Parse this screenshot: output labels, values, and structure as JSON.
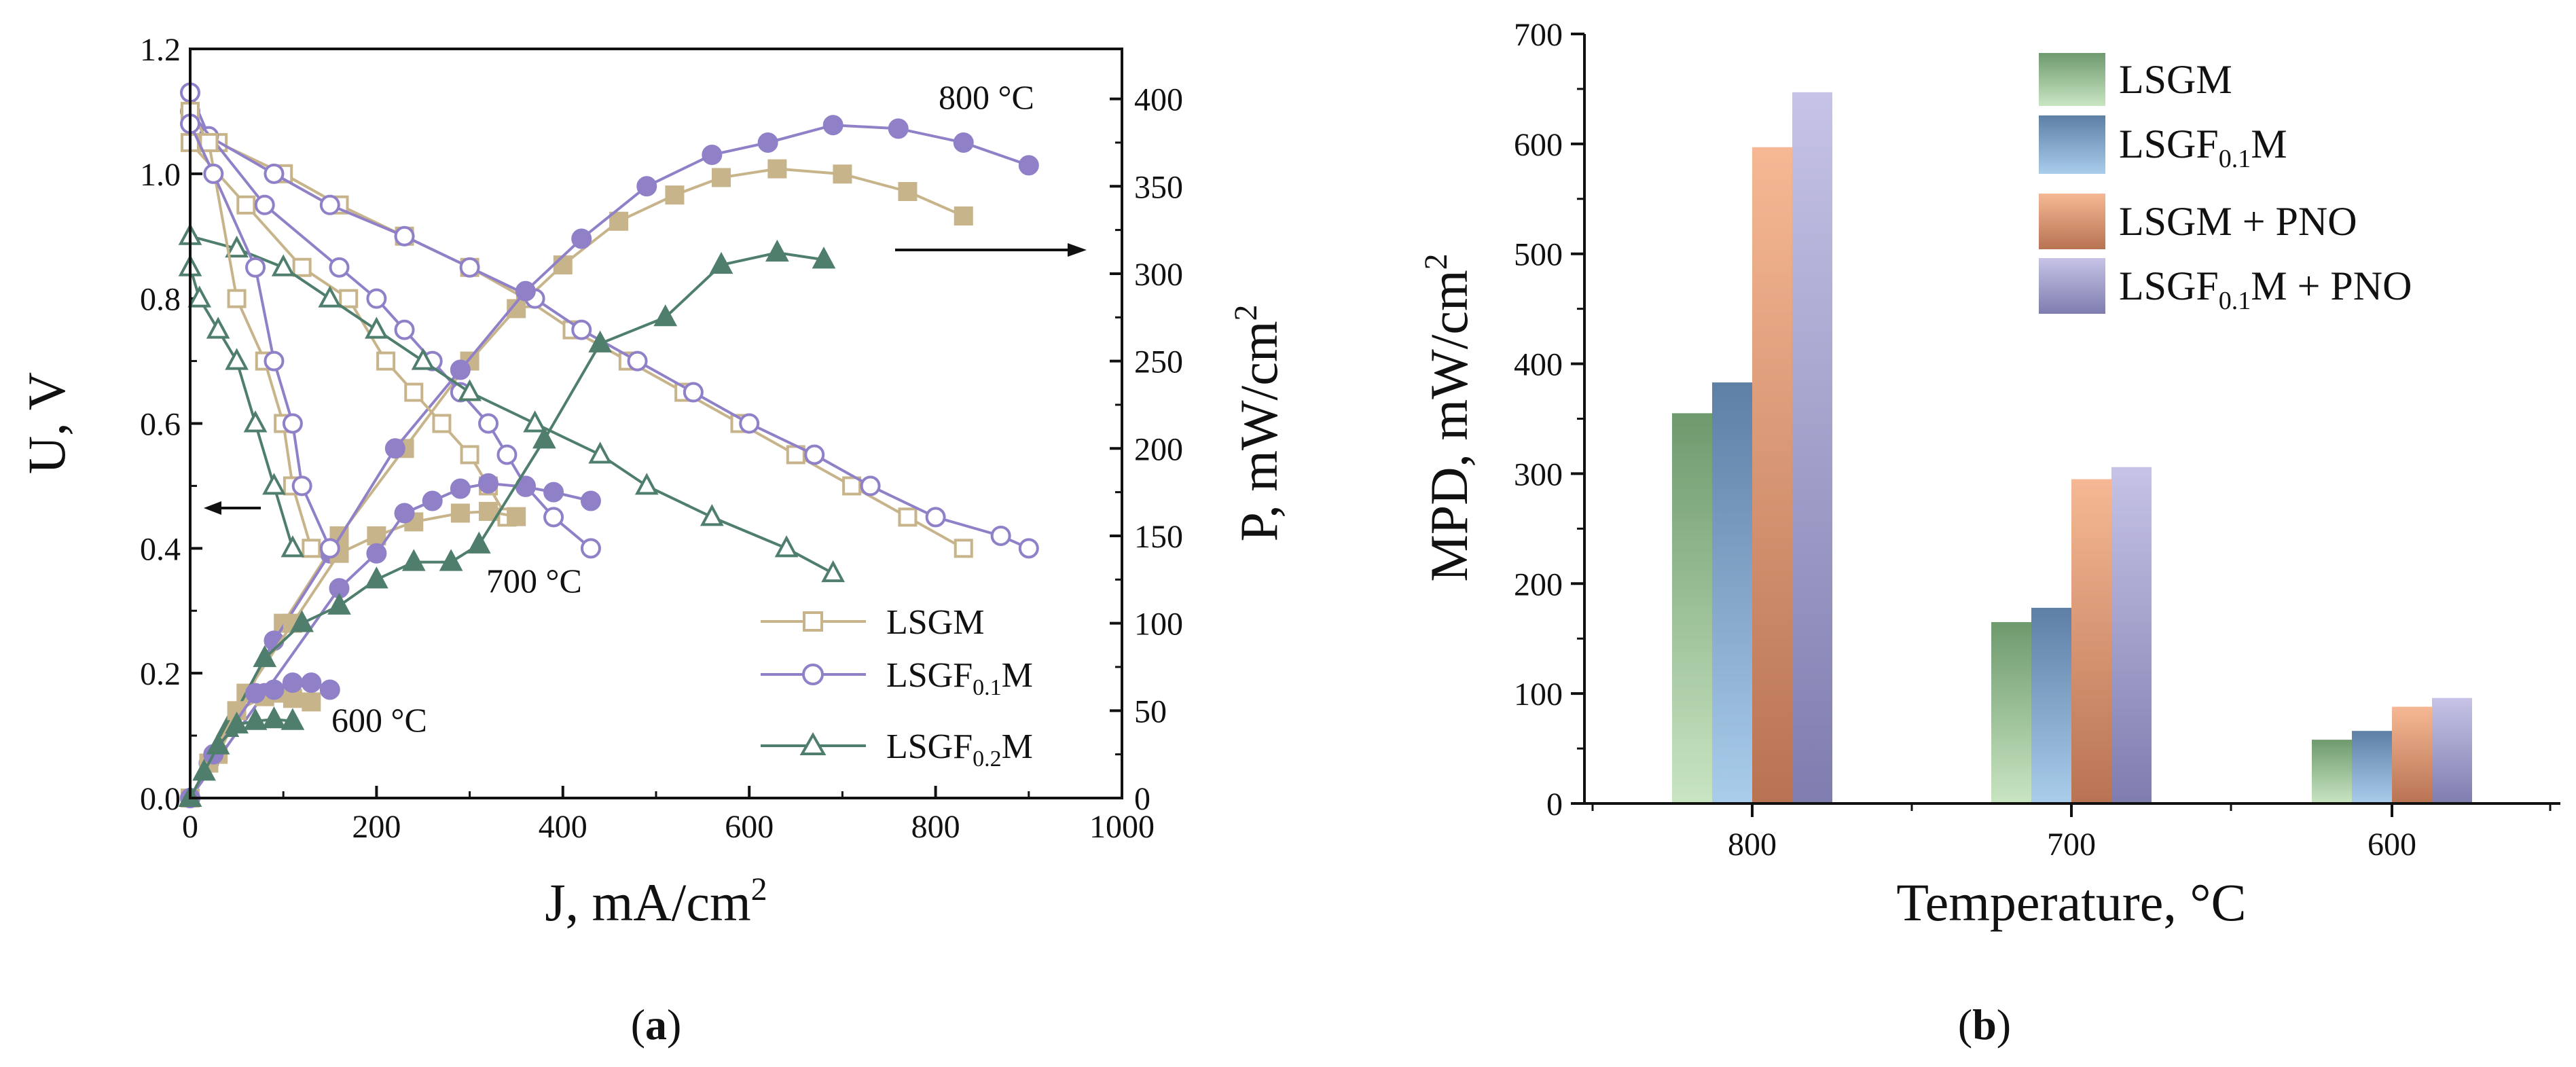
{
  "chart_data": [
    {
      "type": "line",
      "panel_label": "a",
      "x": {
        "label": "J, mA/cm",
        "label_sup": "2",
        "lim": [
          0,
          1000
        ],
        "ticks": [
          0,
          200,
          400,
          600,
          800,
          1000
        ]
      },
      "y_left": {
        "label": "U, V",
        "lim": [
          0,
          1.2
        ],
        "ticks": [
          "0.0",
          "0.2",
          "0.4",
          "0.6",
          "0.8",
          "1.0",
          "1.2"
        ]
      },
      "y_right": {
        "label": "P, mW/cm",
        "label_sup": "2",
        "lim": [
          0,
          428.6
        ],
        "ticks": [
          0,
          50,
          100,
          150,
          200,
          250,
          300,
          350,
          400
        ]
      },
      "legend": [
        {
          "name": "LSGM",
          "sub": "",
          "suffix": "",
          "marker": "square",
          "color": "#C8B48A"
        },
        {
          "name": "LSGF",
          "sub": "0.1",
          "suffix": "M",
          "marker": "circle",
          "color": "#8F80C8"
        },
        {
          "name": "LSGF",
          "sub": "0.2",
          "suffix": "M",
          "marker": "triangle",
          "color": "#4F7E6C"
        }
      ],
      "annotations": [
        "800 °C",
        "700 °C",
        "600 °C"
      ],
      "series": [
        {
          "material": "LSGM",
          "temp": "800 °C",
          "kind": "U",
          "x": [
            0,
            30,
            100,
            160,
            230,
            300,
            360,
            410,
            470,
            530,
            590,
            650,
            710,
            770,
            830
          ],
          "y": [
            1.09,
            1.05,
            1.0,
            0.95,
            0.9,
            0.85,
            0.8,
            0.75,
            0.7,
            0.65,
            0.6,
            0.55,
            0.5,
            0.45,
            0.4
          ]
        },
        {
          "material": "LSGM",
          "temp": "800 °C",
          "kind": "P",
          "x": [
            0,
            30,
            100,
            160,
            230,
            300,
            350,
            400,
            460,
            520,
            570,
            630,
            700,
            770,
            830
          ],
          "y": [
            0,
            25,
            100,
            150,
            200,
            250,
            280,
            305,
            330,
            345,
            355,
            360,
            357,
            347,
            333
          ]
        },
        {
          "material": "LSGF0.1M",
          "temp": "800 °C",
          "kind": "U",
          "x": [
            0,
            20,
            90,
            150,
            230,
            300,
            370,
            420,
            480,
            540,
            600,
            670,
            730,
            800,
            870,
            900
          ],
          "y": [
            1.13,
            1.06,
            1.0,
            0.95,
            0.9,
            0.85,
            0.8,
            0.75,
            0.7,
            0.65,
            0.6,
            0.55,
            0.5,
            0.45,
            0.42,
            0.4
          ]
        },
        {
          "material": "LSGF0.1M",
          "temp": "800 °C",
          "kind": "P",
          "x": [
            0,
            20,
            90,
            150,
            220,
            290,
            360,
            420,
            490,
            560,
            620,
            690,
            760,
            830,
            900
          ],
          "y": [
            0,
            20,
            90,
            140,
            200,
            245,
            290,
            320,
            350,
            368,
            375,
            385,
            383,
            375,
            362
          ]
        },
        {
          "material": "LSGM",
          "temp": "700 °C",
          "kind": "U",
          "x": [
            0,
            60,
            120,
            170,
            210,
            240,
            270,
            300,
            320,
            340
          ],
          "y": [
            1.05,
            0.95,
            0.85,
            0.8,
            0.7,
            0.65,
            0.6,
            0.55,
            0.5,
            0.45
          ]
        },
        {
          "material": "LSGM",
          "temp": "700 °C",
          "kind": "P",
          "x": [
            0,
            60,
            110,
            160,
            200,
            240,
            290,
            320,
            350
          ],
          "y": [
            0,
            60,
            100,
            140,
            150,
            158,
            163,
            164,
            161
          ]
        },
        {
          "material": "LSGF0.1M",
          "temp": "700 °C",
          "kind": "U",
          "x": [
            0,
            80,
            160,
            200,
            230,
            260,
            290,
            320,
            340,
            360,
            390,
            430
          ],
          "y": [
            1.1,
            0.95,
            0.85,
            0.8,
            0.75,
            0.7,
            0.65,
            0.6,
            0.55,
            0.5,
            0.45,
            0.4
          ]
        },
        {
          "material": "LSGF0.1M",
          "temp": "700 °C",
          "kind": "P",
          "x": [
            0,
            80,
            160,
            200,
            230,
            260,
            290,
            320,
            360,
            390,
            430
          ],
          "y": [
            0,
            60,
            120,
            140,
            163,
            170,
            177,
            180,
            178,
            175,
            170
          ]
        },
        {
          "material": "LSGF0.2M",
          "temp": "700 °C",
          "kind": "U",
          "x": [
            0,
            50,
            100,
            150,
            200,
            250,
            300,
            370,
            440,
            490,
            560,
            640,
            690
          ],
          "y": [
            0.9,
            0.88,
            0.85,
            0.8,
            0.75,
            0.7,
            0.65,
            0.6,
            0.55,
            0.5,
            0.45,
            0.4,
            0.36
          ]
        },
        {
          "material": "LSGF0.2M",
          "temp": "700 °C",
          "kind": "P",
          "x": [
            0,
            40,
            80,
            120,
            160,
            200,
            240,
            280,
            310,
            380,
            440,
            510,
            570,
            630,
            680
          ],
          "y": [
            0,
            40,
            80,
            100,
            110,
            125,
            135,
            135,
            145,
            205,
            260,
            275,
            305,
            312,
            308
          ]
        },
        {
          "material": "LSGM",
          "temp": "600 °C",
          "kind": "U",
          "x": [
            0,
            20,
            50,
            80,
            100,
            110,
            130
          ],
          "y": [
            1.1,
            1.05,
            0.8,
            0.7,
            0.6,
            0.5,
            0.4
          ]
        },
        {
          "material": "LSGM",
          "temp": "600 °C",
          "kind": "P",
          "x": [
            0,
            20,
            50,
            80,
            100,
            110,
            130
          ],
          "y": [
            0,
            20,
            50,
            58,
            60,
            57,
            55
          ]
        },
        {
          "material": "LSGF0.1M",
          "temp": "600 °C",
          "kind": "U",
          "x": [
            0,
            25,
            70,
            90,
            110,
            120,
            150
          ],
          "y": [
            1.08,
            1.0,
            0.85,
            0.7,
            0.6,
            0.5,
            0.4
          ]
        },
        {
          "material": "LSGF0.1M",
          "temp": "600 °C",
          "kind": "P",
          "x": [
            0,
            25,
            70,
            90,
            110,
            130,
            150
          ],
          "y": [
            0,
            25,
            60,
            62,
            66,
            66,
            62
          ]
        },
        {
          "material": "LSGF0.2M",
          "temp": "600 °C",
          "kind": "U",
          "x": [
            0,
            10,
            30,
            50,
            70,
            90,
            110
          ],
          "y": [
            0.85,
            0.8,
            0.75,
            0.7,
            0.6,
            0.5,
            0.4
          ]
        },
        {
          "material": "LSGF0.2M",
          "temp": "600 °C",
          "kind": "P",
          "x": [
            0,
            15,
            30,
            50,
            70,
            90,
            110
          ],
          "y": [
            0,
            15,
            30,
            42,
            44,
            45,
            44
          ]
        }
      ]
    },
    {
      "type": "bar",
      "panel_label": "b",
      "title": "",
      "xlabel": "Temperature, °C",
      "ylabel": "MPD, mW/cm",
      "ylabel_sup": "2",
      "ylim": [
        0,
        700
      ],
      "yticks": [
        0,
        100,
        200,
        300,
        400,
        500,
        600,
        700
      ],
      "categories": [
        "800",
        "700",
        "600"
      ],
      "series": [
        {
          "name": "LSGM",
          "sub": "",
          "suffix": "",
          "values": [
            355,
            165,
            58
          ],
          "color_top": "#6E9A6E",
          "color_bottom": "#C9E5C2"
        },
        {
          "name": "LSGF",
          "sub": "0.1",
          "suffix": "M",
          "values": [
            383,
            178,
            66
          ],
          "color_top": "#5E7FA6",
          "color_bottom": "#A9CDEB"
        },
        {
          "name": "LSGM + PNO",
          "sub": "",
          "suffix": "",
          "values": [
            597,
            295,
            88
          ],
          "color_top": "#F6B894",
          "color_bottom": "#B87352"
        },
        {
          "name": "LSGF",
          "sub": "0.1",
          "suffix": "M + PNO",
          "values": [
            647,
            306,
            96
          ],
          "color_top": "#C6C3E6",
          "color_bottom": "#7F7DAF"
        }
      ]
    }
  ]
}
